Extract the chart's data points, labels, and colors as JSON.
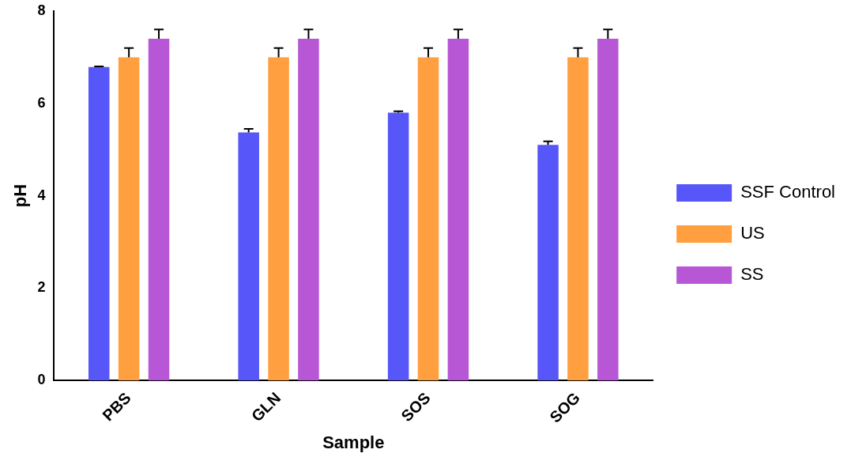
{
  "chart_data": {
    "type": "bar",
    "xlabel": "Sample",
    "ylabel": "pH",
    "categories": [
      "PBS",
      "GLN",
      "SOS",
      "SOG"
    ],
    "series": [
      {
        "name": "SSF Control",
        "color": "#5757f9",
        "values": [
          6.79,
          5.37,
          5.8,
          5.1
        ],
        "errors": [
          0.01,
          0.08,
          0.03,
          0.08
        ]
      },
      {
        "name": "US",
        "color": "#ff9f40",
        "values": [
          7.0,
          7.0,
          7.0,
          7.0
        ],
        "errors": [
          0.2,
          0.2,
          0.2,
          0.2
        ]
      },
      {
        "name": "SS",
        "color": "#b857d6",
        "values": [
          7.4,
          7.4,
          7.4,
          7.4
        ],
        "errors": [
          0.2,
          0.2,
          0.2,
          0.2
        ]
      }
    ],
    "ylim": [
      0,
      8
    ],
    "yticks": [
      0,
      2,
      4,
      6,
      8
    ],
    "grid": false,
    "legend": "right"
  }
}
